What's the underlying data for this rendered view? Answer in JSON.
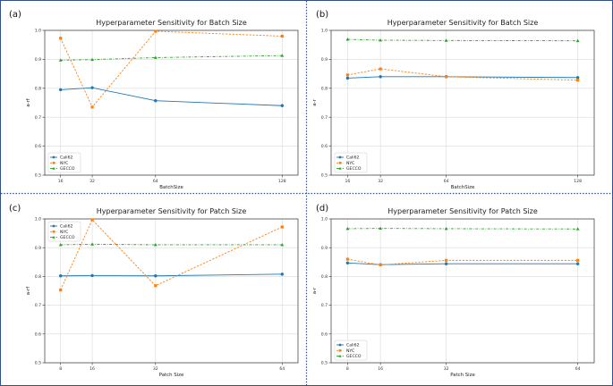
{
  "colors": {
    "Cali62": "#1f77b4",
    "NYC": "#ff7f0e",
    "GECCO": "#2ca02c",
    "grid": "#d9d9d9",
    "divider": "#2f4f8f"
  },
  "chart_data": [
    {
      "panel_label": "(a)",
      "type": "line",
      "title": "Hyperparameter Sensitivity for Batch Size",
      "xlabel": "BatchSize",
      "ylabel": "a-rf",
      "x": [
        16,
        32,
        64,
        128
      ],
      "xticks": [
        "16",
        "32",
        "64",
        "128"
      ],
      "xlim": [
        8,
        136
      ],
      "ylim": [
        0.5,
        1.0
      ],
      "yticks": [
        "0.5",
        "0.6",
        "0.7",
        "0.8",
        "0.9",
        "1.0"
      ],
      "grid": true,
      "legend": "bottom-left",
      "series": [
        {
          "name": "Cali62",
          "values": [
            0.795,
            0.802,
            0.757,
            0.74
          ]
        },
        {
          "name": "NYC",
          "values": [
            0.973,
            0.735,
            0.997,
            0.98
          ]
        },
        {
          "name": "GECCO",
          "values": [
            0.897,
            0.899,
            0.906,
            0.913
          ]
        }
      ]
    },
    {
      "panel_label": "(b)",
      "type": "line",
      "title": "Hyperparameter Sensitivity for Batch Size",
      "xlabel": "BatchSize",
      "ylabel": "a-r",
      "x": [
        16,
        32,
        64,
        128
      ],
      "xticks": [
        "16",
        "32",
        "64",
        "128"
      ],
      "xlim": [
        8,
        136
      ],
      "ylim": [
        0.5,
        1.0
      ],
      "yticks": [
        "0.5",
        "0.6",
        "0.7",
        "0.8",
        "0.9",
        "1.0"
      ],
      "grid": true,
      "legend": "bottom-left",
      "series": [
        {
          "name": "Cali62",
          "values": [
            0.835,
            0.84,
            0.84,
            0.837
          ]
        },
        {
          "name": "NYC",
          "values": [
            0.846,
            0.867,
            0.84,
            0.828
          ]
        },
        {
          "name": "GECCO",
          "values": [
            0.969,
            0.966,
            0.965,
            0.964
          ]
        }
      ]
    },
    {
      "panel_label": "(c)",
      "type": "line",
      "title": "Hyperparameter Sensitivity for Patch Size",
      "xlabel": "Patch Size",
      "ylabel": "a-rf",
      "x": [
        8,
        16,
        32,
        64
      ],
      "xticks": [
        "8",
        "16",
        "32",
        "64"
      ],
      "xlim": [
        4,
        68
      ],
      "ylim": [
        0.5,
        1.0
      ],
      "yticks": [
        "0.5",
        "0.6",
        "0.7",
        "0.8",
        "0.9",
        "1.0"
      ],
      "grid": true,
      "legend": "top-left",
      "series": [
        {
          "name": "Cali62",
          "values": [
            0.802,
            0.803,
            0.802,
            0.808
          ]
        },
        {
          "name": "NYC",
          "values": [
            0.753,
            0.997,
            0.768,
            0.972
          ]
        },
        {
          "name": "GECCO",
          "values": [
            0.91,
            0.912,
            0.91,
            0.91
          ]
        }
      ]
    },
    {
      "panel_label": "(d)",
      "type": "line",
      "title": "Hyperparameter Sensitivity for Patch Size",
      "xlabel": "Patch Size",
      "ylabel": "a-r",
      "x": [
        8,
        16,
        32,
        64
      ],
      "xticks": [
        "8",
        "16",
        "32",
        "64"
      ],
      "xlim": [
        4,
        68
      ],
      "ylim": [
        0.5,
        1.0
      ],
      "yticks": [
        "0.5",
        "0.6",
        "0.7",
        "0.8",
        "0.9",
        "1.0"
      ],
      "grid": true,
      "legend": "bottom-left",
      "series": [
        {
          "name": "Cali62",
          "values": [
            0.847,
            0.841,
            0.844,
            0.844
          ]
        },
        {
          "name": "NYC",
          "values": [
            0.86,
            0.84,
            0.856,
            0.856
          ]
        },
        {
          "name": "GECCO",
          "values": [
            0.966,
            0.967,
            0.966,
            0.965
          ]
        }
      ]
    }
  ]
}
